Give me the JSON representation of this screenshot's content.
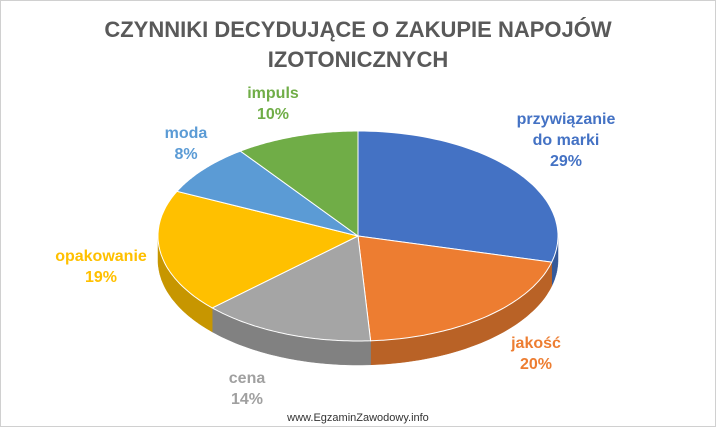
{
  "chart_data": {
    "type": "pie3d",
    "title": "CZYNNIKI DECYDUJĄCE O ZAKUPIE NAPOJÓW IZOTONICZNYCH",
    "categories": [
      "przywiązanie do marki",
      "jakość",
      "cena",
      "opakowanie",
      "moda",
      "impuls"
    ],
    "values": [
      29,
      20,
      14,
      19,
      8,
      10
    ],
    "value_labels": [
      "29%",
      "20%",
      "14%",
      "19%",
      "8%",
      "10%"
    ],
    "colors": [
      "#4472c4",
      "#ed7d31",
      "#a5a5a5",
      "#ffc000",
      "#5b9bd5",
      "#70ad47"
    ]
  },
  "watermark": "www.EgzaminZawodowy.info"
}
